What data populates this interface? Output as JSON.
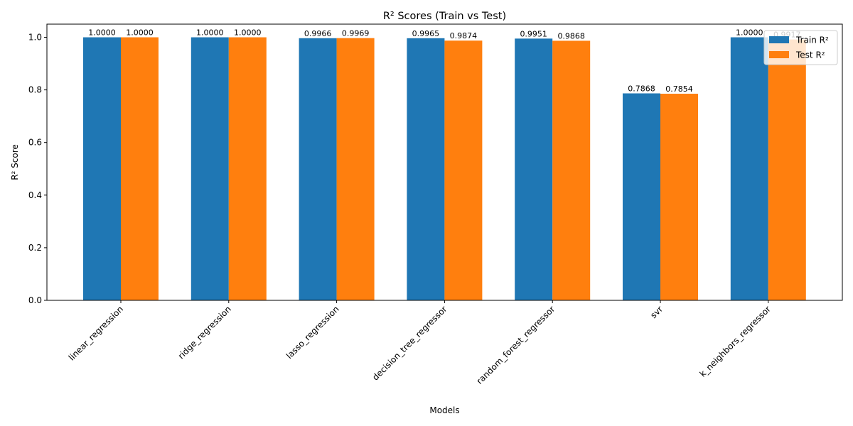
{
  "chart_data": {
    "type": "bar",
    "title": "R² Scores (Train vs Test)",
    "xlabel": "Models",
    "ylabel": "R² Score",
    "ylim": [
      0,
      1.05
    ],
    "yticks": [
      "0.0",
      "0.2",
      "0.4",
      "0.6",
      "0.8",
      "1.0"
    ],
    "grid": false,
    "legend_position": "top-right",
    "categories": [
      "linear_regression",
      "ridge_regression",
      "lasso_regression",
      "decision_tree_regressor",
      "random_forest_regressor",
      "svr",
      "k_neighbors_regressor"
    ],
    "series": [
      {
        "name": "Train R²",
        "color": "#1f77b4",
        "values": [
          1.0,
          1.0,
          0.9966,
          0.9965,
          0.9951,
          0.7868,
          1.0
        ],
        "labels": [
          "1.0000",
          "1.0000",
          "0.9966",
          "0.9965",
          "0.9951",
          "0.7868",
          "1.0000"
        ]
      },
      {
        "name": "Test R²",
        "color": "#ff7f0e",
        "values": [
          1.0,
          1.0,
          0.9969,
          0.9874,
          0.9868,
          0.7854,
          0.9917
        ],
        "labels": [
          "1.0000",
          "1.0000",
          "0.9969",
          "0.9874",
          "0.9868",
          "0.7854",
          "0.9917"
        ]
      }
    ]
  }
}
